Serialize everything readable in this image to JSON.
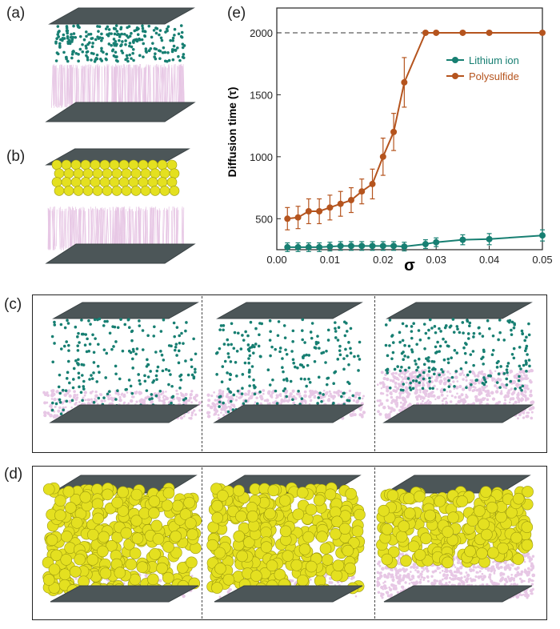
{
  "panel_labels": {
    "a": "(a)",
    "b": "(b)",
    "c": "(c)",
    "d": "(d)",
    "e": "(e)"
  },
  "colors": {
    "plate": "#4c5658",
    "lithium": "#177f72",
    "polysulfide": "#b5541e",
    "sulfur_sphere": "#e4e020",
    "polymer": "#d59bd0"
  },
  "chart_data": {
    "type": "line",
    "xlabel": "σ",
    "ylabel": "Diffusion time (τ)",
    "xlim": [
      0.0,
      0.05
    ],
    "ylim": [
      250,
      2200
    ],
    "x_ticks": [
      "0.00",
      "0.01",
      "0.02",
      "0.03",
      "0.04",
      "0.05"
    ],
    "y_ticks": [
      "500",
      "1000",
      "1500",
      "2000"
    ],
    "reference_line": {
      "y": 2000,
      "style": "dashed"
    },
    "legend_position": "top-right",
    "grid": false,
    "series": [
      {
        "name": "Lithium ion",
        "color": "#177f72",
        "x": [
          0.002,
          0.004,
          0.006,
          0.008,
          0.01,
          0.012,
          0.014,
          0.016,
          0.018,
          0.02,
          0.022,
          0.024,
          0.028,
          0.03,
          0.035,
          0.04,
          0.05
        ],
        "y": [
          270,
          270,
          270,
          270,
          275,
          280,
          280,
          280,
          280,
          280,
          280,
          275,
          295,
          310,
          330,
          335,
          365
        ],
        "err": [
          35,
          35,
          35,
          35,
          35,
          35,
          35,
          35,
          35,
          35,
          35,
          35,
          35,
          35,
          40,
          45,
          45
        ]
      },
      {
        "name": "Polysulfide",
        "color": "#b5541e",
        "x": [
          0.002,
          0.004,
          0.006,
          0.008,
          0.01,
          0.012,
          0.014,
          0.016,
          0.018,
          0.02,
          0.022,
          0.024,
          0.028,
          0.03,
          0.035,
          0.04,
          0.05
        ],
        "y": [
          500,
          510,
          560,
          560,
          590,
          620,
          650,
          720,
          780,
          1000,
          1200,
          1600,
          2000,
          2000,
          2000,
          2000,
          2000
        ],
        "err": [
          90,
          90,
          100,
          100,
          100,
          100,
          100,
          100,
          120,
          150,
          150,
          200,
          0,
          0,
          0,
          0,
          0
        ]
      }
    ]
  }
}
